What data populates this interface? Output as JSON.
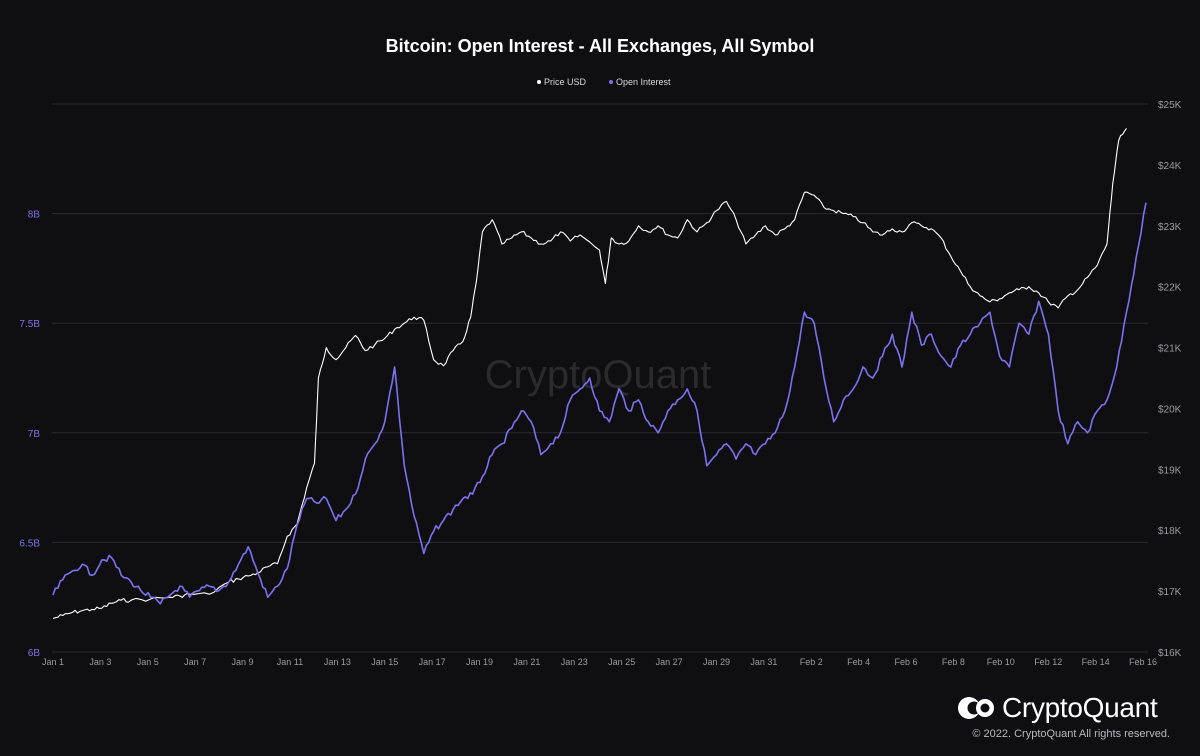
{
  "chart_data": {
    "type": "line",
    "title": "Bitcoin: Open Interest - All Exchanges, All Symbol",
    "legend": [
      "Price USD",
      "Open Interest"
    ],
    "legend_position": "top-center",
    "grid": true,
    "watermark": "CryptoQuant",
    "x_ticks": [
      "Jan 1",
      "Jan 3",
      "Jan 5",
      "Jan 7",
      "Jan 9",
      "Jan 11",
      "Jan 13",
      "Jan 15",
      "Jan 17",
      "Jan 19",
      "Jan 21",
      "Jan 23",
      "Jan 25",
      "Jan 27",
      "Jan 29",
      "Jan 31",
      "Feb 2",
      "Feb 4",
      "Feb 6",
      "Feb 8",
      "Feb 10",
      "Feb 12",
      "Feb 14",
      "Feb 16"
    ],
    "y_left_ticks": [
      "6B",
      "6.5B",
      "7B",
      "7.5B",
      "8B"
    ],
    "y_left_range": [
      6,
      8.5
    ],
    "y_right_ticks": [
      "$16K",
      "$17K",
      "$18K",
      "$19K",
      "$20K",
      "$21K",
      "$22K",
      "$23K",
      "$24K",
      "$25K"
    ],
    "y_right_range": [
      16000,
      25000
    ],
    "x_range_days": [
      0,
      46
    ],
    "series": [
      {
        "name": "Price USD",
        "color": "#ffffff",
        "axis": "right",
        "points": [
          [
            0,
            16550
          ],
          [
            0.5,
            16600
          ],
          [
            1,
            16650
          ],
          [
            1.5,
            16680
          ],
          [
            2,
            16700
          ],
          [
            2.5,
            16720
          ],
          [
            3,
            16800
          ],
          [
            3.5,
            16850
          ],
          [
            4,
            16850
          ],
          [
            5,
            16870
          ],
          [
            6,
            16900
          ],
          [
            6.5,
            16920
          ],
          [
            7,
            16950
          ],
          [
            8,
            16950
          ],
          [
            9,
            17150
          ],
          [
            9.5,
            17200
          ],
          [
            10,
            17250
          ],
          [
            10.5,
            17300
          ],
          [
            11,
            17400
          ],
          [
            11.5,
            17450
          ],
          [
            12,
            17900
          ],
          [
            12.5,
            18100
          ],
          [
            13,
            18700
          ],
          [
            13.4,
            19100
          ],
          [
            13.6,
            20500
          ],
          [
            14,
            21000
          ],
          [
            14.5,
            20800
          ],
          [
            15,
            21000
          ],
          [
            15.5,
            21200
          ],
          [
            16,
            20950
          ],
          [
            16.5,
            21050
          ],
          [
            17,
            21150
          ],
          [
            17.5,
            21300
          ],
          [
            18,
            21400
          ],
          [
            18.5,
            21500
          ],
          [
            19,
            21450
          ],
          [
            19.5,
            20800
          ],
          [
            20,
            20700
          ],
          [
            20.5,
            20950
          ],
          [
            21,
            21100
          ],
          [
            21.4,
            21500
          ],
          [
            21.7,
            22100
          ],
          [
            22,
            22900
          ],
          [
            22.5,
            23100
          ],
          [
            23,
            22700
          ],
          [
            23.5,
            22800
          ],
          [
            24,
            22900
          ],
          [
            24.5,
            22800
          ],
          [
            25,
            22700
          ],
          [
            25.5,
            22750
          ],
          [
            26,
            22900
          ],
          [
            26.5,
            22750
          ],
          [
            27,
            22850
          ],
          [
            28,
            22600
          ],
          [
            28.3,
            22050
          ],
          [
            28.6,
            22800
          ],
          [
            29,
            22700
          ],
          [
            29.5,
            22750
          ],
          [
            30,
            23000
          ],
          [
            30.5,
            22900
          ],
          [
            31,
            23000
          ],
          [
            31.5,
            22850
          ],
          [
            32,
            22800
          ],
          [
            32.5,
            23100
          ],
          [
            33,
            22900
          ],
          [
            33.5,
            23050
          ],
          [
            34,
            23250
          ],
          [
            34.5,
            23400
          ],
          [
            35,
            23100
          ],
          [
            35.5,
            22700
          ],
          [
            36,
            22850
          ],
          [
            36.5,
            23000
          ],
          [
            37,
            22850
          ],
          [
            37.5,
            22950
          ],
          [
            38,
            23100
          ],
          [
            38.5,
            23550
          ],
          [
            39,
            23500
          ],
          [
            39.5,
            23300
          ],
          [
            40,
            23250
          ],
          [
            40.5,
            23200
          ],
          [
            41,
            23150
          ],
          [
            41.5,
            23050
          ],
          [
            42,
            22900
          ],
          [
            42.5,
            22850
          ],
          [
            43,
            22950
          ],
          [
            43.5,
            22900
          ],
          [
            44,
            23050
          ],
          [
            44.5,
            23000
          ],
          [
            45,
            22950
          ],
          [
            45.5,
            22800
          ],
          [
            46,
            22500
          ],
          [
            46.5,
            22250
          ],
          [
            47,
            22000
          ],
          [
            47.5,
            21850
          ],
          [
            48,
            21750
          ],
          [
            48.5,
            21800
          ],
          [
            49,
            21900
          ],
          [
            49.5,
            21950
          ],
          [
            50,
            22000
          ],
          [
            50.5,
            21900
          ],
          [
            51,
            21750
          ],
          [
            51.5,
            21650
          ],
          [
            52,
            21850
          ],
          [
            52.5,
            21950
          ],
          [
            53,
            22150
          ],
          [
            53.5,
            22350
          ],
          [
            54,
            22700
          ],
          [
            54.3,
            23700
          ],
          [
            54.6,
            24400
          ],
          [
            55,
            24600
          ]
        ]
      },
      {
        "name": "Open Interest",
        "color": "#7b72f0",
        "axis": "left",
        "points": [
          [
            0,
            6.26
          ],
          [
            0.5,
            6.33
          ],
          [
            1,
            6.37
          ],
          [
            1.5,
            6.4
          ],
          [
            2,
            6.35
          ],
          [
            2.5,
            6.42
          ],
          [
            3,
            6.43
          ],
          [
            3.5,
            6.35
          ],
          [
            4,
            6.32
          ],
          [
            4.5,
            6.28
          ],
          [
            5,
            6.25
          ],
          [
            5.5,
            6.22
          ],
          [
            6,
            6.26
          ],
          [
            6.5,
            6.3
          ],
          [
            7,
            6.25
          ],
          [
            7.5,
            6.28
          ],
          [
            8,
            6.3
          ],
          [
            8.5,
            6.28
          ],
          [
            9,
            6.32
          ],
          [
            9.5,
            6.4
          ],
          [
            10,
            6.48
          ],
          [
            10.5,
            6.36
          ],
          [
            11,
            6.25
          ],
          [
            11.5,
            6.3
          ],
          [
            12,
            6.38
          ],
          [
            12.5,
            6.58
          ],
          [
            13,
            6.7
          ],
          [
            13.5,
            6.68
          ],
          [
            14,
            6.7
          ],
          [
            14.5,
            6.6
          ],
          [
            15,
            6.65
          ],
          [
            15.5,
            6.72
          ],
          [
            16,
            6.88
          ],
          [
            16.5,
            6.95
          ],
          [
            17,
            7.05
          ],
          [
            17.5,
            7.3
          ],
          [
            18,
            6.85
          ],
          [
            18.5,
            6.62
          ],
          [
            19,
            6.45
          ],
          [
            19.5,
            6.55
          ],
          [
            20,
            6.6
          ],
          [
            20.5,
            6.65
          ],
          [
            21,
            6.7
          ],
          [
            21.5,
            6.72
          ],
          [
            22,
            6.8
          ],
          [
            22.5,
            6.9
          ],
          [
            23,
            6.95
          ],
          [
            23.5,
            7.02
          ],
          [
            24,
            7.1
          ],
          [
            24.5,
            7.05
          ],
          [
            25,
            6.9
          ],
          [
            25.5,
            6.95
          ],
          [
            26,
            7.0
          ],
          [
            26.5,
            7.15
          ],
          [
            27,
            7.2
          ],
          [
            27.5,
            7.25
          ],
          [
            28,
            7.1
          ],
          [
            28.5,
            7.05
          ],
          [
            29,
            7.2
          ],
          [
            29.5,
            7.1
          ],
          [
            30,
            7.15
          ],
          [
            30.5,
            7.05
          ],
          [
            31,
            7.0
          ],
          [
            31.5,
            7.1
          ],
          [
            32,
            7.15
          ],
          [
            32.5,
            7.2
          ],
          [
            33,
            7.1
          ],
          [
            33.5,
            6.85
          ],
          [
            34,
            6.9
          ],
          [
            34.5,
            6.95
          ],
          [
            35,
            6.88
          ],
          [
            35.5,
            6.95
          ],
          [
            36,
            6.9
          ],
          [
            36.5,
            6.95
          ],
          [
            37,
            7.0
          ],
          [
            37.5,
            7.1
          ],
          [
            38,
            7.3
          ],
          [
            38.5,
            7.55
          ],
          [
            39,
            7.5
          ],
          [
            39.5,
            7.25
          ],
          [
            40,
            7.05
          ],
          [
            40.5,
            7.15
          ],
          [
            41,
            7.2
          ],
          [
            41.5,
            7.3
          ],
          [
            42,
            7.25
          ],
          [
            42.5,
            7.35
          ],
          [
            43,
            7.45
          ],
          [
            43.5,
            7.3
          ],
          [
            44,
            7.55
          ],
          [
            44.5,
            7.4
          ],
          [
            45,
            7.45
          ],
          [
            45.5,
            7.35
          ],
          [
            46,
            7.3
          ],
          [
            46.5,
            7.4
          ],
          [
            47,
            7.45
          ],
          [
            47.5,
            7.5
          ],
          [
            48,
            7.55
          ],
          [
            48.5,
            7.35
          ],
          [
            49,
            7.3
          ],
          [
            49.5,
            7.5
          ],
          [
            50,
            7.45
          ],
          [
            50.5,
            7.6
          ],
          [
            51,
            7.45
          ],
          [
            51.5,
            7.1
          ],
          [
            52,
            6.95
          ],
          [
            52.5,
            7.05
          ],
          [
            53,
            7.0
          ],
          [
            53.5,
            7.1
          ],
          [
            54,
            7.15
          ],
          [
            54.5,
            7.3
          ],
          [
            55,
            7.55
          ],
          [
            55.5,
            7.8
          ],
          [
            56,
            8.05
          ]
        ]
      }
    ]
  },
  "footer": {
    "brand": "CryptoQuant",
    "copyright": "© 2022. CryptoQuant All rights reserved."
  }
}
